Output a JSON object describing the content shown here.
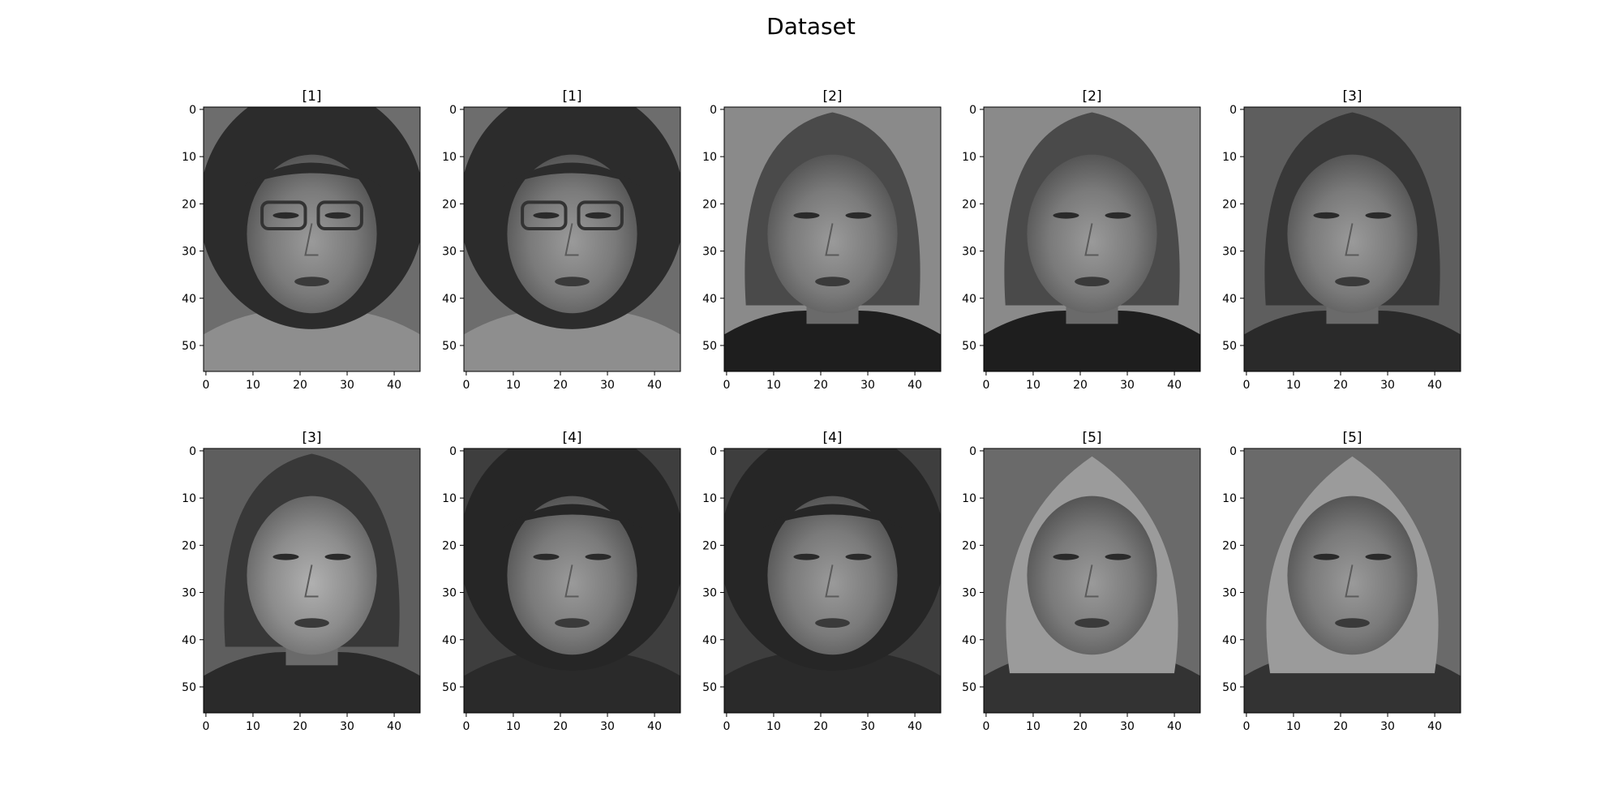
{
  "chart_data": {
    "type": "image-grid",
    "title": "Dataset",
    "rows": 2,
    "cols": 5,
    "image_height": 56,
    "image_width": 46,
    "xlim": [
      -0.5,
      45.5
    ],
    "ylim": [
      55.5,
      -0.5
    ],
    "xticks": [
      0,
      10,
      20,
      30,
      40
    ],
    "yticks": [
      0,
      10,
      20,
      30,
      40,
      50
    ],
    "colormap": "gray",
    "panels": [
      {
        "label": "[1]",
        "subject": 1
      },
      {
        "label": "[1]",
        "subject": 1
      },
      {
        "label": "[2]",
        "subject": 2
      },
      {
        "label": "[2]",
        "subject": 2
      },
      {
        "label": "[3]",
        "subject": 3
      },
      {
        "label": "[3]",
        "subject": 3
      },
      {
        "label": "[4]",
        "subject": 4
      },
      {
        "label": "[4]",
        "subject": 4
      },
      {
        "label": "[5]",
        "subject": 5
      },
      {
        "label": "[5]",
        "subject": 5
      }
    ]
  },
  "colors": {
    "background": "#ffffff",
    "axes": "#000000"
  }
}
